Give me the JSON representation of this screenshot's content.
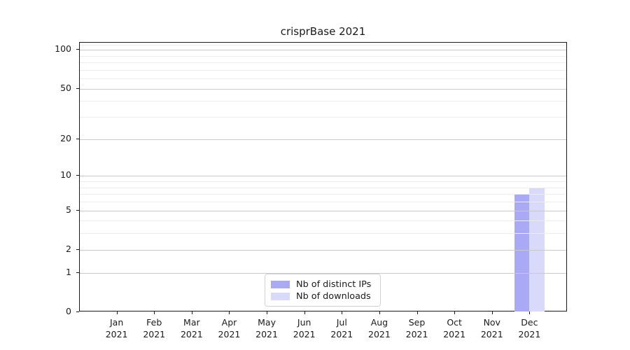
{
  "chart_data": {
    "type": "bar",
    "title": "crisprBase 2021",
    "categories": [
      "Jan 2021",
      "Feb 2021",
      "Mar 2021",
      "Apr 2021",
      "May 2021",
      "Jun 2021",
      "Jul 2021",
      "Aug 2021",
      "Sep 2021",
      "Oct 2021",
      "Nov 2021",
      "Dec 2021"
    ],
    "months": [
      "Jan",
      "Feb",
      "Mar",
      "Apr",
      "May",
      "Jun",
      "Jul",
      "Aug",
      "Sep",
      "Oct",
      "Nov",
      "Dec"
    ],
    "year": "2021",
    "series": [
      {
        "name": "Nb of distinct IPs",
        "color": "#a9a9f6",
        "values": [
          0,
          0,
          0,
          0,
          0,
          0,
          0,
          0,
          0,
          0,
          0,
          7
        ]
      },
      {
        "name": "Nb of downloads",
        "color": "#d9d9fa",
        "values": [
          0,
          0,
          0,
          0,
          0,
          0,
          0,
          0,
          0,
          0,
          0,
          8
        ]
      }
    ],
    "xlabel": "",
    "ylabel": "",
    "yscale": "log1p",
    "ylim": [
      0,
      113.6
    ],
    "y_major_ticks": [
      0,
      1,
      2,
      5,
      10,
      20,
      50,
      100
    ],
    "y_minor_gridlines": [
      3,
      4,
      6,
      7,
      8,
      9,
      30,
      40,
      60,
      70,
      80,
      90,
      110
    ],
    "grid": true,
    "legend_position": "lower center",
    "colors": {
      "major_grid": "#c9c9c9",
      "minor_grid": "#ececec",
      "spine": "#1a1a1a",
      "text": "#1a1a1a"
    }
  }
}
